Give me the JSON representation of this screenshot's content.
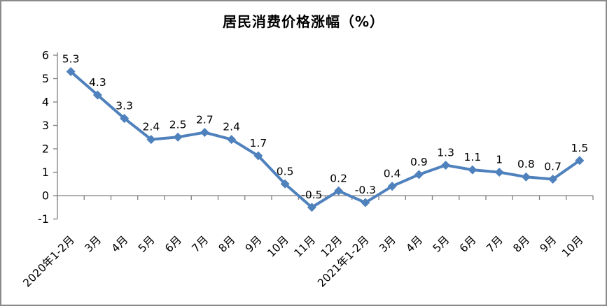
{
  "chart_data": {
    "type": "line",
    "title": "居民消费价格涨幅（%）",
    "categories": [
      "2020年1-2月",
      "3月",
      "4月",
      "5月",
      "6月",
      "7月",
      "8月",
      "9月",
      "10月",
      "11月",
      "12月",
      "2021年1-2月",
      "3月",
      "4月",
      "5月",
      "6月",
      "7月",
      "8月",
      "9月",
      "10月"
    ],
    "values": [
      5.3,
      4.3,
      3.3,
      2.4,
      2.5,
      2.7,
      2.4,
      1.7,
      0.5,
      -0.5,
      0.2,
      -0.3,
      0.4,
      0.9,
      1.3,
      1.1,
      1,
      0.8,
      0.7,
      1.5
    ],
    "point_labels": [
      "5.3",
      "4.3",
      "3.3",
      "2.4",
      "2.5",
      "2.7",
      "2.4",
      "1.7",
      "0.5",
      "-0.5",
      "0.2",
      "-0.3",
      "0.4",
      "0.9",
      "1.3",
      "1.1",
      "1",
      "0.8",
      "0.7",
      "1.5"
    ],
    "y_ticks": [
      6,
      5,
      4,
      3,
      2,
      1,
      0,
      -1
    ],
    "ylim": [
      -1,
      6
    ],
    "xlabel": "",
    "ylabel": "",
    "grid": false,
    "legend_position": "none",
    "marker_shape": "diamond",
    "line_color": "#4F81BD",
    "axis_color": "#808080",
    "label_color": "#000000",
    "frame_border_color": "#8a8a8a",
    "background_color": "#ffffff"
  }
}
